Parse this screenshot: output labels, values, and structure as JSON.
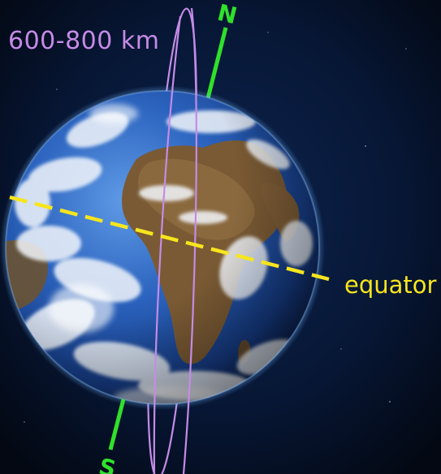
{
  "labels": {
    "orbit_altitude": "600-800 km",
    "equator": "equator",
    "north": "N",
    "south": "S"
  },
  "colors": {
    "background": "#050c1a",
    "orbit": "#c58be6",
    "axis": "#2fe12a",
    "equator": "#f7e51d",
    "ocean": "#2a5fb8",
    "land": "#7a5a34",
    "clouds": "#f2f6fb"
  }
}
